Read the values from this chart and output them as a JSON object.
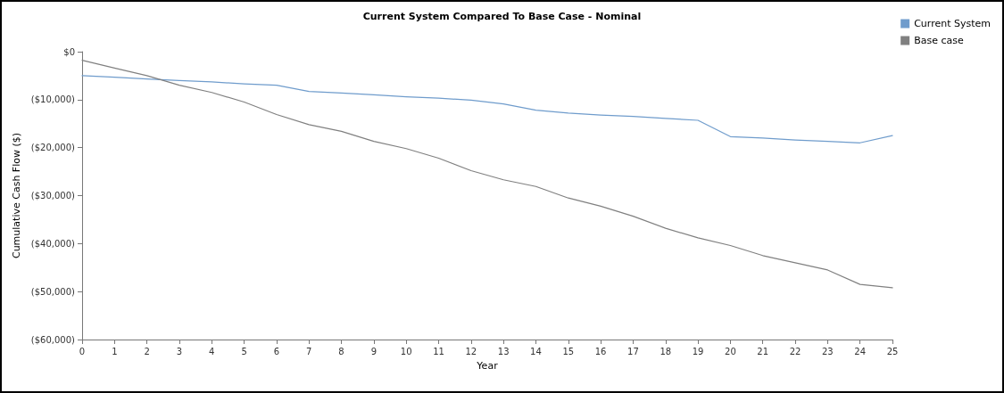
{
  "chart_data": {
    "type": "line",
    "title": "Current System Compared To Base Case - Nominal",
    "xlabel": "Year",
    "ylabel": "Cumulative Cash Flow ($)",
    "x": [
      0,
      1,
      2,
      3,
      4,
      5,
      6,
      7,
      8,
      9,
      10,
      11,
      12,
      13,
      14,
      15,
      16,
      17,
      18,
      19,
      20,
      21,
      22,
      23,
      24,
      25
    ],
    "series": [
      {
        "name": "Current System",
        "color": "#6f9ccc",
        "values": [
          -5000,
          -5300,
          -5700,
          -6000,
          -6300,
          -6700,
          -7000,
          -8300,
          -8600,
          -9000,
          -9400,
          -9700,
          -10100,
          -10900,
          -12200,
          -12800,
          -13200,
          -13500,
          -13900,
          -14300,
          -17700,
          -18000,
          -18400,
          -18700,
          -19000,
          -17500
        ]
      },
      {
        "name": "Base case",
        "color": "#808080",
        "values": [
          -1800,
          -3400,
          -5000,
          -7000,
          -8500,
          -10500,
          -13100,
          -15200,
          -16600,
          -18700,
          -20200,
          -22200,
          -24800,
          -26700,
          -28100,
          -30500,
          -32200,
          -34300,
          -36800,
          -38800,
          -40400,
          -42500,
          -44000,
          -45500,
          -48500,
          -49200
        ]
      }
    ],
    "xlim": [
      0,
      25
    ],
    "xticks": [
      0,
      1,
      2,
      3,
      4,
      5,
      6,
      7,
      8,
      9,
      10,
      11,
      12,
      13,
      14,
      15,
      16,
      17,
      18,
      19,
      20,
      21,
      22,
      23,
      24,
      25
    ],
    "ylim": [
      -60000,
      0
    ],
    "yticks": [
      {
        "value": -60000,
        "label": "($60,000)"
      },
      {
        "value": -50000,
        "label": "($50,000)"
      },
      {
        "value": -40000,
        "label": "($40,000)"
      },
      {
        "value": -30000,
        "label": "($30,000)"
      },
      {
        "value": -20000,
        "label": "($20,000)"
      },
      {
        "value": -10000,
        "label": "($10,000)"
      },
      {
        "value": 0,
        "label": "$0"
      }
    ],
    "grid": false,
    "legend": "top right",
    "marker": "none",
    "line_style": "solid"
  }
}
